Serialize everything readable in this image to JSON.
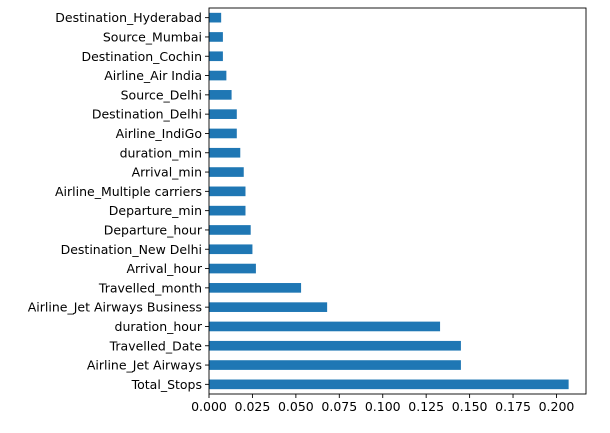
{
  "chart_data": {
    "type": "bar",
    "orientation": "horizontal",
    "bar_color": "#1f77b4",
    "grid": false,
    "xlim": [
      0,
      0.217
    ],
    "xticks": [
      0.0,
      0.025,
      0.05,
      0.075,
      0.1,
      0.125,
      0.15,
      0.175,
      0.2
    ],
    "xtick_labels": [
      "0.000",
      "0.025",
      "0.050",
      "0.075",
      "0.100",
      "0.125",
      "0.150",
      "0.175",
      "0.200"
    ],
    "categories": [
      "Total_Stops",
      "Airline_Jet Airways",
      "Travelled_Date",
      "duration_hour",
      "Airline_Jet Airways Business",
      "Travelled_month",
      "Arrival_hour",
      "Destination_New Delhi",
      "Departure_hour",
      "Departure_min",
      "Airline_Multiple carriers",
      "Arrival_min",
      "duration_min",
      "Airline_IndiGo",
      "Destination_Delhi",
      "Source_Delhi",
      "Airline_Air India",
      "Destination_Cochin",
      "Source_Mumbai",
      "Destination_Hyderabad"
    ],
    "values": [
      0.207,
      0.145,
      0.145,
      0.133,
      0.068,
      0.053,
      0.027,
      0.025,
      0.024,
      0.021,
      0.021,
      0.02,
      0.018,
      0.016,
      0.016,
      0.013,
      0.01,
      0.008,
      0.008,
      0.007
    ]
  }
}
